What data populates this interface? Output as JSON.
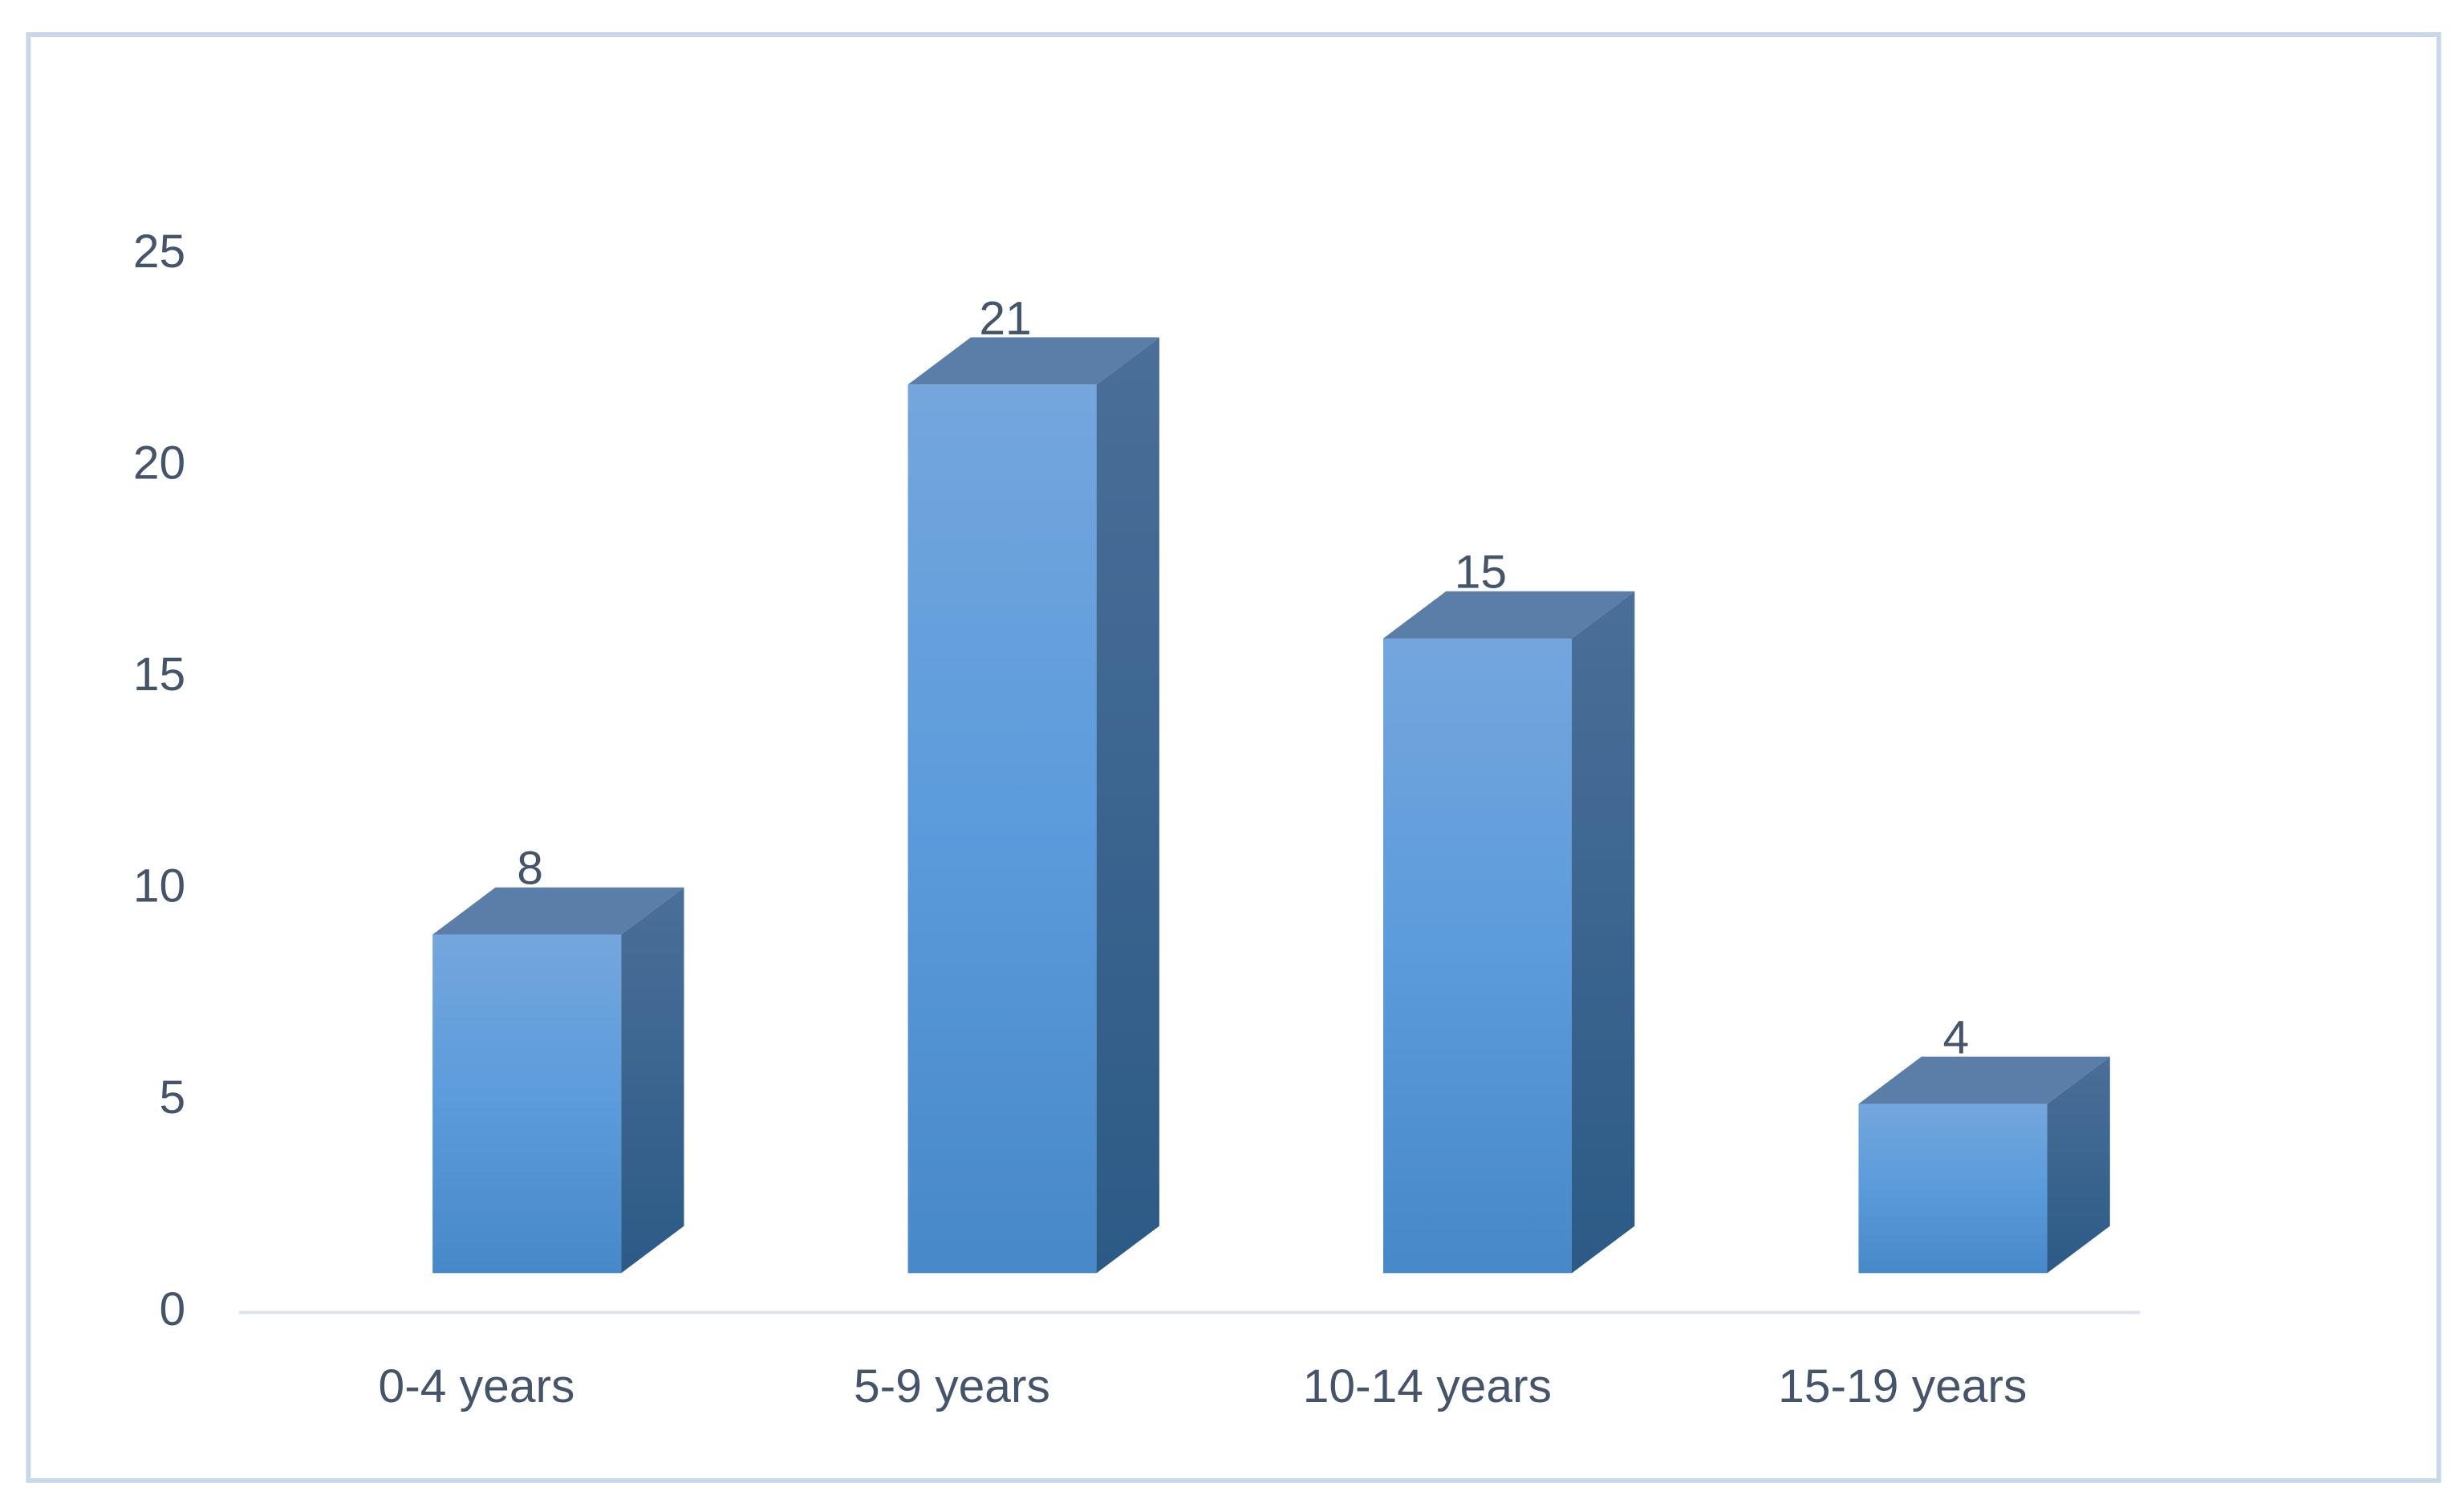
{
  "chart_data": {
    "type": "bar3d",
    "categories": [
      "0-4 years",
      "5-9 years",
      "10-14 years",
      "15-19 years"
    ],
    "values": [
      8,
      21,
      15,
      4
    ],
    "color": "#5b9bd5",
    "ylim": [
      0,
      25
    ],
    "yticks": [
      0,
      5,
      10,
      15,
      20,
      25
    ],
    "grid": false
  }
}
